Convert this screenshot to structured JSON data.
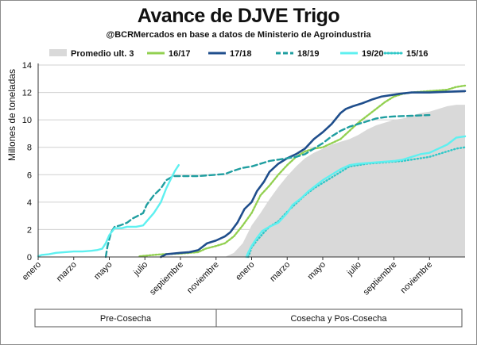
{
  "title": "Avance de DJVE Trigo",
  "subtitle": "@BCRMercados en base a datos de Ministerio de Agroindustria",
  "ylabel": "Millones de toneladas",
  "legend": [
    {
      "label": "Promedio ult. 3",
      "color": "#d9d9d9",
      "style": "area"
    },
    {
      "label": "16/17",
      "color": "#92d050",
      "style": "solid"
    },
    {
      "label": "17/18",
      "color": "#1f4e8c",
      "style": "solid"
    },
    {
      "label": "18/19",
      "color": "#1f9ea0",
      "style": "dashed"
    },
    {
      "label": "19/20",
      "color": "#5ef0f0",
      "style": "solid"
    },
    {
      "label": "15/16",
      "color": "#30c8c8",
      "style": "dotted"
    }
  ],
  "phases": [
    {
      "label": "Pre-Cosecha"
    },
    {
      "label": "Cosecha y Pos-Cosecha"
    }
  ],
  "chart_data": {
    "type": "line",
    "x_unit": "month index (0 = enero, 24 months across two years)",
    "x_ticks": [
      {
        "x": 0,
        "label": "enero"
      },
      {
        "x": 2,
        "label": "marzo"
      },
      {
        "x": 4,
        "label": "mayo"
      },
      {
        "x": 6,
        "label": "julio"
      },
      {
        "x": 8,
        "label": "septiembre"
      },
      {
        "x": 10,
        "label": "noviembre"
      },
      {
        "x": 12,
        "label": "enero"
      },
      {
        "x": 14,
        "label": "marzo"
      },
      {
        "x": 16,
        "label": "mayo"
      },
      {
        "x": 18,
        "label": "julio"
      },
      {
        "x": 20,
        "label": "septiembre"
      },
      {
        "x": 22,
        "label": "noviembre"
      }
    ],
    "xlim": [
      0,
      24
    ],
    "ylim": [
      0,
      14
    ],
    "y_ticks": [
      0,
      2,
      4,
      6,
      8,
      10,
      12,
      14
    ],
    "series": [
      {
        "name": "Promedio ult. 3",
        "type": "area",
        "color": "#d9d9d9",
        "points": [
          [
            10.5,
            0
          ],
          [
            11.0,
            0.3
          ],
          [
            11.5,
            1.0
          ],
          [
            12.0,
            2.3
          ],
          [
            12.5,
            3.2
          ],
          [
            13.0,
            4.2
          ],
          [
            13.5,
            5.1
          ],
          [
            14.0,
            5.9
          ],
          [
            14.5,
            6.6
          ],
          [
            15.0,
            7.2
          ],
          [
            15.5,
            7.6
          ],
          [
            16.0,
            7.9
          ],
          [
            16.5,
            8.2
          ],
          [
            17.0,
            8.4
          ],
          [
            17.5,
            8.6
          ],
          [
            18.0,
            8.9
          ],
          [
            18.5,
            9.3
          ],
          [
            19.0,
            9.6
          ],
          [
            19.5,
            9.8
          ],
          [
            20.0,
            10.0
          ],
          [
            20.5,
            10.1
          ],
          [
            21.0,
            10.3
          ],
          [
            21.5,
            10.5
          ],
          [
            22.0,
            10.6
          ],
          [
            22.5,
            10.8
          ],
          [
            23.0,
            11.0
          ],
          [
            23.5,
            11.1
          ],
          [
            24.0,
            11.1
          ]
        ]
      },
      {
        "name": "16/17",
        "type": "line",
        "color": "#92d050",
        "dash": "2,2",
        "points": [
          [
            5.7,
            0.05
          ],
          [
            6.5,
            0.15
          ],
          [
            7.0,
            0.2
          ],
          [
            8.0,
            0.25
          ],
          [
            9.0,
            0.35
          ],
          [
            9.4,
            0.6
          ],
          [
            10.0,
            0.8
          ],
          [
            10.5,
            1.0
          ],
          [
            11.0,
            1.5
          ],
          [
            11.5,
            2.3
          ],
          [
            12.0,
            3.2
          ],
          [
            12.5,
            4.5
          ],
          [
            13.0,
            5.2
          ],
          [
            13.5,
            6.0
          ],
          [
            14.0,
            6.7
          ],
          [
            14.5,
            7.3
          ],
          [
            15.0,
            7.7
          ],
          [
            15.5,
            7.9
          ],
          [
            16.0,
            8.0
          ],
          [
            16.5,
            8.3
          ],
          [
            17.0,
            8.6
          ],
          [
            17.5,
            9.2
          ],
          [
            18.0,
            9.8
          ],
          [
            18.5,
            10.3
          ],
          [
            19.0,
            10.8
          ],
          [
            19.5,
            11.3
          ],
          [
            20.0,
            11.7
          ],
          [
            20.5,
            11.9
          ],
          [
            21.0,
            12.0
          ],
          [
            22.0,
            12.1
          ],
          [
            23.0,
            12.2
          ],
          [
            23.5,
            12.4
          ],
          [
            24.0,
            12.5
          ]
        ]
      },
      {
        "name": "17/18",
        "type": "line",
        "color": "#1f4e8c",
        "dash": "",
        "points": [
          [
            6.9,
            0.0
          ],
          [
            7.2,
            0.2
          ],
          [
            8.0,
            0.3
          ],
          [
            8.5,
            0.35
          ],
          [
            9.0,
            0.5
          ],
          [
            9.5,
            1.0
          ],
          [
            10.0,
            1.2
          ],
          [
            10.5,
            1.5
          ],
          [
            10.8,
            1.8
          ],
          [
            11.2,
            2.5
          ],
          [
            11.6,
            3.5
          ],
          [
            12.0,
            4.0
          ],
          [
            12.3,
            4.8
          ],
          [
            12.7,
            5.5
          ],
          [
            13.0,
            6.2
          ],
          [
            13.5,
            6.8
          ],
          [
            14.0,
            7.2
          ],
          [
            14.5,
            7.5
          ],
          [
            15.0,
            7.9
          ],
          [
            15.5,
            8.6
          ],
          [
            16.0,
            9.1
          ],
          [
            16.5,
            9.7
          ],
          [
            17.0,
            10.5
          ],
          [
            17.3,
            10.8
          ],
          [
            17.7,
            11.0
          ],
          [
            18.2,
            11.2
          ],
          [
            18.8,
            11.5
          ],
          [
            19.3,
            11.7
          ],
          [
            19.8,
            11.8
          ],
          [
            20.3,
            11.9
          ],
          [
            21.0,
            12.0
          ],
          [
            22.0,
            12.0
          ],
          [
            23.0,
            12.05
          ],
          [
            24.0,
            12.1
          ]
        ]
      },
      {
        "name": "18/19",
        "type": "line",
        "color": "#1f9ea0",
        "dash": "7,4",
        "points": [
          [
            3.8,
            0.0
          ],
          [
            3.9,
            0.8
          ],
          [
            4.1,
            1.8
          ],
          [
            4.3,
            2.2
          ],
          [
            4.6,
            2.3
          ],
          [
            5.0,
            2.5
          ],
          [
            5.3,
            2.8
          ],
          [
            5.6,
            3.0
          ],
          [
            5.9,
            3.2
          ],
          [
            6.1,
            3.8
          ],
          [
            6.5,
            4.5
          ],
          [
            6.9,
            5.0
          ],
          [
            7.2,
            5.6
          ],
          [
            7.6,
            5.9
          ],
          [
            8.0,
            5.9
          ],
          [
            8.5,
            5.9
          ],
          [
            9.0,
            5.9
          ],
          [
            9.5,
            5.95
          ],
          [
            10.0,
            6.0
          ],
          [
            10.5,
            6.05
          ],
          [
            11.0,
            6.3
          ],
          [
            11.5,
            6.5
          ],
          [
            12.0,
            6.6
          ],
          [
            12.5,
            6.8
          ],
          [
            13.0,
            7.0
          ],
          [
            13.5,
            7.1
          ],
          [
            14.0,
            7.2
          ],
          [
            14.5,
            7.3
          ],
          [
            15.0,
            7.5
          ],
          [
            15.5,
            7.9
          ],
          [
            16.0,
            8.3
          ],
          [
            16.5,
            8.8
          ],
          [
            17.0,
            9.2
          ],
          [
            17.5,
            9.5
          ],
          [
            18.0,
            9.7
          ],
          [
            18.5,
            9.9
          ],
          [
            19.0,
            10.1
          ],
          [
            19.5,
            10.2
          ],
          [
            20.0,
            10.25
          ],
          [
            21.0,
            10.3
          ],
          [
            22.0,
            10.35
          ]
        ]
      },
      {
        "name": "19/20",
        "type": "line",
        "color": "#5ef0f0",
        "dash": "",
        "points": [
          [
            0.0,
            0.05
          ],
          [
            0.2,
            0.15
          ],
          [
            0.6,
            0.2
          ],
          [
            1.0,
            0.3
          ],
          [
            1.5,
            0.35
          ],
          [
            2.0,
            0.4
          ],
          [
            2.5,
            0.4
          ],
          [
            3.0,
            0.45
          ],
          [
            3.3,
            0.5
          ],
          [
            3.6,
            0.6
          ],
          [
            3.8,
            1.0
          ],
          [
            4.0,
            1.6
          ],
          [
            4.3,
            2.1
          ],
          [
            4.7,
            2.1
          ],
          [
            5.0,
            2.2
          ],
          [
            5.5,
            2.2
          ],
          [
            5.9,
            2.3
          ],
          [
            6.1,
            2.6
          ],
          [
            6.5,
            3.2
          ],
          [
            6.9,
            4.0
          ],
          [
            7.2,
            5.0
          ],
          [
            7.5,
            5.8
          ],
          [
            7.7,
            6.3
          ],
          [
            7.9,
            6.7
          ]
        ]
      },
      {
        "name": "15/16",
        "type": "line",
        "color": "#30c8c8",
        "dash": "1,3",
        "points": [
          [
            11.8,
            0.0
          ],
          [
            11.9,
            0.3
          ],
          [
            12.0,
            0.7
          ],
          [
            12.3,
            1.2
          ],
          [
            12.7,
            1.8
          ],
          [
            13.0,
            2.2
          ],
          [
            13.5,
            2.6
          ],
          [
            14.0,
            3.3
          ],
          [
            14.5,
            3.9
          ],
          [
            15.0,
            4.5
          ],
          [
            15.5,
            5.0
          ],
          [
            16.0,
            5.4
          ],
          [
            16.5,
            5.8
          ],
          [
            17.0,
            6.2
          ],
          [
            17.5,
            6.6
          ],
          [
            18.0,
            6.7
          ],
          [
            18.5,
            6.8
          ],
          [
            19.0,
            6.85
          ],
          [
            19.5,
            6.9
          ],
          [
            20.0,
            6.95
          ],
          [
            20.5,
            7.0
          ],
          [
            21.0,
            7.1
          ],
          [
            21.5,
            7.2
          ],
          [
            22.0,
            7.3
          ],
          [
            22.5,
            7.5
          ],
          [
            23.0,
            7.7
          ],
          [
            23.5,
            7.9
          ],
          [
            24.0,
            8.0
          ]
        ]
      },
      {
        "name": "19/20",
        "type": "line",
        "color": "#5ef0f0",
        "dash": "",
        "points": [
          [
            11.7,
            0.0
          ],
          [
            11.8,
            0.3
          ],
          [
            12.0,
            0.8
          ],
          [
            12.3,
            1.4
          ],
          [
            12.6,
            1.9
          ],
          [
            13.0,
            2.2
          ],
          [
            13.5,
            2.5
          ],
          [
            14.0,
            3.2
          ],
          [
            14.3,
            3.8
          ],
          [
            14.8,
            4.3
          ],
          [
            15.2,
            4.8
          ],
          [
            15.6,
            5.2
          ],
          [
            16.0,
            5.6
          ],
          [
            16.5,
            6.0
          ],
          [
            17.0,
            6.4
          ],
          [
            17.5,
            6.7
          ],
          [
            18.0,
            6.8
          ],
          [
            19.0,
            6.9
          ],
          [
            20.0,
            7.0
          ],
          [
            20.5,
            7.1
          ],
          [
            21.0,
            7.3
          ],
          [
            21.5,
            7.5
          ],
          [
            22.0,
            7.6
          ],
          [
            22.5,
            7.9
          ],
          [
            23.0,
            8.2
          ],
          [
            23.5,
            8.7
          ],
          [
            24.0,
            8.8
          ]
        ]
      }
    ]
  }
}
